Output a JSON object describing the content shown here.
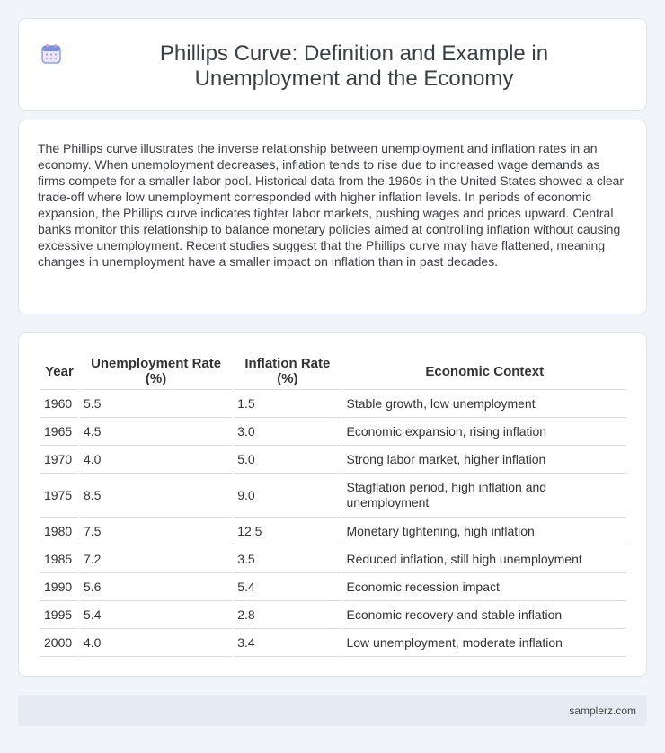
{
  "header": {
    "title": "Phillips Curve: Definition and Example in Unemployment and the Economy",
    "icon": "calendar-icon"
  },
  "intro": {
    "text": "The Phillips curve illustrates the inverse relationship between unemployment and inflation rates in an economy. When unemployment decreases, inflation tends to rise due to increased wage demands as firms compete for a smaller labor pool. Historical data from the 1960s in the United States showed a clear trade-off where low unemployment corresponded with higher inflation levels. In periods of economic expansion, the Phillips curve indicates tighter labor markets, pushing wages and prices upward. Central banks monitor this relationship to balance monetary policies aimed at controlling inflation without causing excessive unemployment. Recent studies suggest that the Phillips curve may have flattened, meaning changes in unemployment have a smaller impact on inflation than in past decades."
  },
  "table": {
    "columns": [
      "Year",
      "Unemployment Rate (%)",
      "Inflation Rate (%)",
      "Economic Context"
    ],
    "rows": [
      {
        "year": "1960",
        "unemployment": "5.5",
        "inflation": "1.5",
        "context": "Stable growth, low unemployment"
      },
      {
        "year": "1965",
        "unemployment": "4.5",
        "inflation": "3.0",
        "context": "Economic expansion, rising inflation"
      },
      {
        "year": "1970",
        "unemployment": "4.0",
        "inflation": "5.0",
        "context": "Strong labor market, higher inflation"
      },
      {
        "year": "1975",
        "unemployment": "8.5",
        "inflation": "9.0",
        "context": "Stagflation period, high inflation and unemployment"
      },
      {
        "year": "1980",
        "unemployment": "7.5",
        "inflation": "12.5",
        "context": "Monetary tightening, high inflation"
      },
      {
        "year": "1985",
        "unemployment": "7.2",
        "inflation": "3.5",
        "context": "Reduced inflation, still high unemployment"
      },
      {
        "year": "1990",
        "unemployment": "5.6",
        "inflation": "5.4",
        "context": "Economic recession impact"
      },
      {
        "year": "1995",
        "unemployment": "5.4",
        "inflation": "2.8",
        "context": "Economic recovery and stable inflation"
      },
      {
        "year": "2000",
        "unemployment": "4.0",
        "inflation": "3.4",
        "context": "Low unemployment, moderate inflation"
      }
    ]
  },
  "footer": {
    "site": "samplerz.com"
  }
}
